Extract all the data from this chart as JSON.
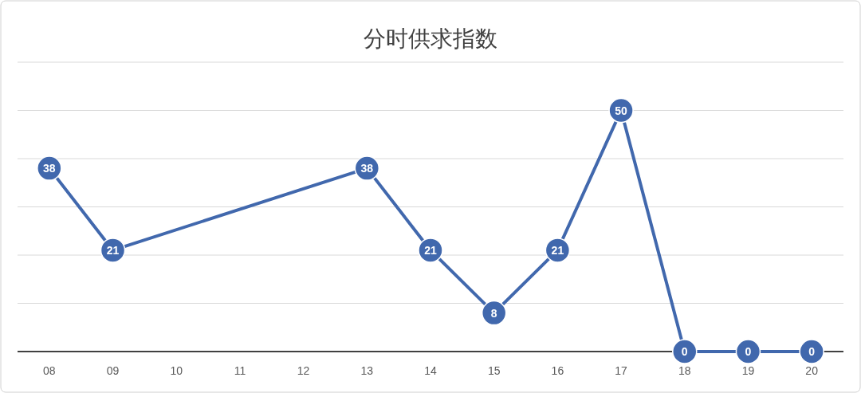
{
  "chart_data": {
    "type": "line",
    "title": "分时供求指数",
    "x": [
      8,
      9,
      13,
      14,
      15,
      16,
      17,
      18,
      19,
      20
    ],
    "values": [
      38,
      21,
      38,
      21,
      8,
      21,
      50,
      0,
      0,
      0
    ],
    "color": "#4168ad",
    "xlim": [
      7.5,
      20.5
    ],
    "xticks": [
      {
        "value": 8,
        "label": "08"
      },
      {
        "value": 9,
        "label": "09"
      },
      {
        "value": 10,
        "label": "10"
      },
      {
        "value": 11,
        "label": "11"
      },
      {
        "value": 12,
        "label": "12"
      },
      {
        "value": 13,
        "label": "13"
      },
      {
        "value": 14,
        "label": "14"
      },
      {
        "value": 15,
        "label": "15"
      },
      {
        "value": 16,
        "label": "16"
      },
      {
        "value": 17,
        "label": "17"
      },
      {
        "value": 18,
        "label": "18"
      },
      {
        "value": 19,
        "label": "19"
      },
      {
        "value": 20,
        "label": "20"
      }
    ],
    "ylim": [
      0,
      60
    ],
    "yticks": [
      {
        "value": 0,
        "label": null
      },
      {
        "value": 10,
        "label": null
      },
      {
        "value": 20,
        "label": null
      },
      {
        "value": 30,
        "label": null
      },
      {
        "value": 40,
        "label": null
      },
      {
        "value": 50,
        "label": null
      },
      {
        "value": 60,
        "label": null
      }
    ],
    "tick_labels": "x",
    "grid": "y",
    "marker": "circle",
    "line_style": "solid",
    "data_labels": true
  }
}
